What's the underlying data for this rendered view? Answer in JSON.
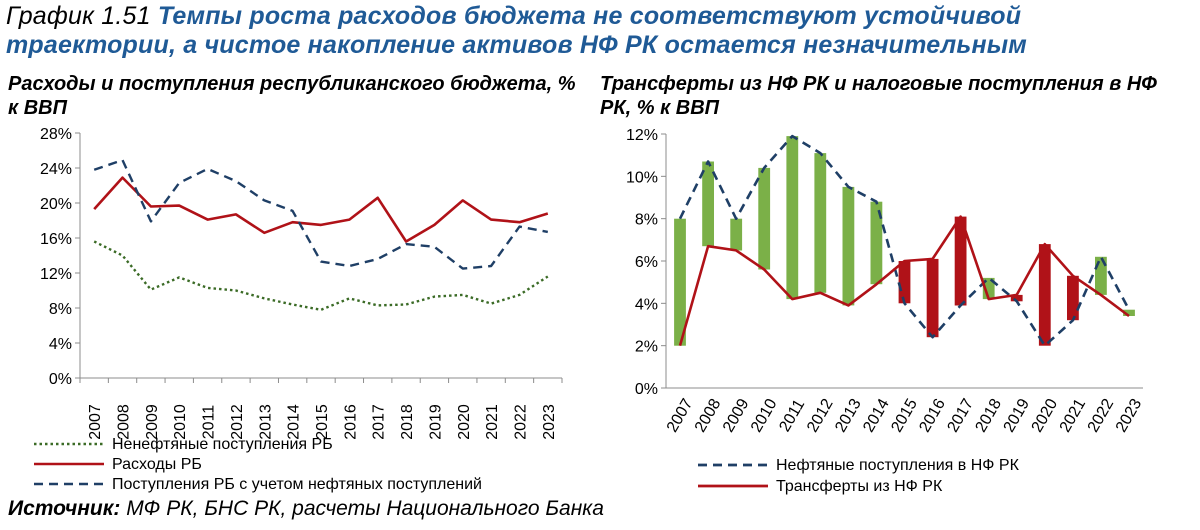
{
  "header": {
    "number": "График 1.51",
    "title": "Темпы роста расходов бюджета не соответствуют устойчивой траектории, а чистое накопление активов НФ РК остается незначительным"
  },
  "source": {
    "label": "Источник:",
    "text": " МФ РК, БНС РК, расчеты Национального Банка"
  },
  "chart_data": [
    {
      "type": "line",
      "title": "Расходы и поступления республиканского бюджета, % к ВВП",
      "x": [
        "2007",
        "2008",
        "2009",
        "2010",
        "2011",
        "2012",
        "2013",
        "2014",
        "2015",
        "2016",
        "2017",
        "2018",
        "2019",
        "2020",
        "2021",
        "2022",
        "2023"
      ],
      "ylim": [
        0,
        28
      ],
      "yticks": [
        "0%",
        "4%",
        "8%",
        "12%",
        "16%",
        "20%",
        "24%",
        "28%"
      ],
      "grid": false,
      "legend_position": "bottom",
      "series": [
        {
          "name": "Ненефтяные поступления РБ",
          "color": "#3b6b26",
          "style": "dotted",
          "values": [
            15.6,
            14.0,
            10.1,
            11.5,
            10.3,
            10.0,
            9.1,
            8.4,
            7.8,
            9.1,
            8.3,
            8.4,
            9.3,
            9.5,
            8.5,
            9.5,
            11.6
          ]
        },
        {
          "name": "Расходы РБ",
          "color": "#b01218",
          "style": "solid",
          "values": [
            19.3,
            22.9,
            19.6,
            19.7,
            18.1,
            18.7,
            16.6,
            17.8,
            17.5,
            18.1,
            20.6,
            15.6,
            17.5,
            20.3,
            18.1,
            17.8,
            18.8
          ]
        },
        {
          "name": "Поступления РБ с учетом нефтяных поступлений",
          "color": "#1f3f66",
          "style": "dashed",
          "values": [
            23.8,
            24.9,
            17.9,
            22.3,
            23.9,
            22.5,
            20.3,
            19.1,
            13.3,
            12.8,
            13.6,
            15.3,
            15.0,
            12.5,
            12.8,
            17.3,
            16.7
          ]
        }
      ]
    },
    {
      "type": "line",
      "title": "Трансферты из НФ РК и налоговые поступления в НФ РК, % к ВВП",
      "x": [
        "2007",
        "2008",
        "2009",
        "2010",
        "2011",
        "2012",
        "2013",
        "2014",
        "2015",
        "2016",
        "2017",
        "2018",
        "2019",
        "2020",
        "2021",
        "2022",
        "2023"
      ],
      "ylim": [
        0,
        12
      ],
      "yticks": [
        "0%",
        "2%",
        "4%",
        "6%",
        "8%",
        "10%",
        "12%"
      ],
      "grid": false,
      "legend_position": "bottom",
      "fill_colors": {
        "surplus": "#7bb048",
        "deficit": "#b01218"
      },
      "series": [
        {
          "name": "Нефтяные поступления в НФ РК",
          "color": "#1f3f66",
          "style": "dashed",
          "values": [
            8.0,
            10.7,
            8.0,
            10.4,
            11.9,
            11.1,
            9.5,
            8.8,
            4.0,
            2.4,
            3.9,
            5.2,
            4.1,
            2.0,
            3.2,
            6.2,
            3.7
          ]
        },
        {
          "name": "Трансферты из НФ РК",
          "color": "#b01218",
          "style": "solid",
          "values": [
            2.0,
            6.7,
            6.5,
            5.6,
            4.2,
            4.5,
            3.9,
            4.9,
            6.0,
            6.1,
            8.1,
            4.2,
            4.4,
            6.8,
            5.3,
            4.4,
            3.4
          ]
        }
      ]
    }
  ]
}
